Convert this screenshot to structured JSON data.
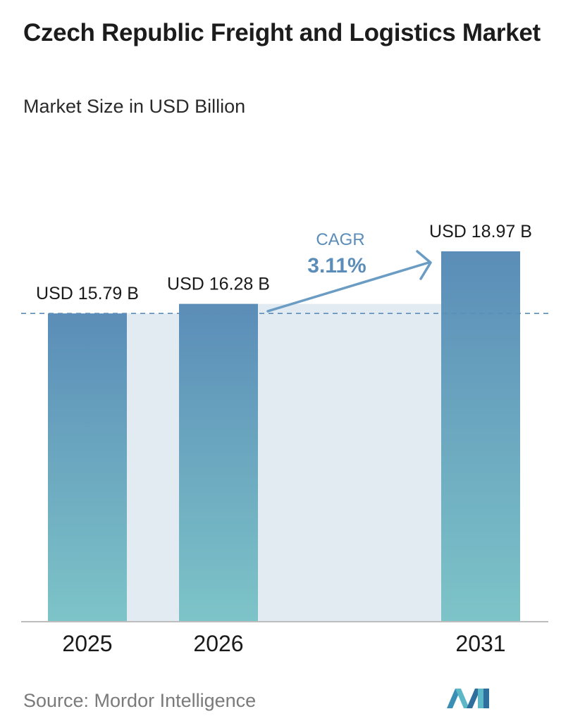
{
  "header": {
    "title": "Czech Republic Freight and Logistics Market",
    "subtitle": "Market Size in USD Billion"
  },
  "chart_data": {
    "type": "bar",
    "categories": [
      "2025",
      "2026",
      "2031"
    ],
    "values": [
      15.79,
      16.28,
      18.97
    ],
    "value_labels": [
      "USD 15.79 B",
      "USD 16.28 B",
      "USD 18.97 B"
    ],
    "ylim": [
      0,
      20
    ],
    "grid": false,
    "annotation": {
      "label": "CAGR",
      "value": "3.11%"
    }
  },
  "colors": {
    "bar_top": "#5b8db8",
    "bar_bottom": "#7dc4c8",
    "band": "#e3ebf2",
    "cagr_text": "#5b8db8",
    "arrow": "#6a9cc4",
    "dashed_line": "#5b8db8",
    "baseline": "#bdbdbd"
  },
  "footer": {
    "source": "Source:  Mordor Intelligence",
    "logo": "mordor-intelligence-logo"
  }
}
